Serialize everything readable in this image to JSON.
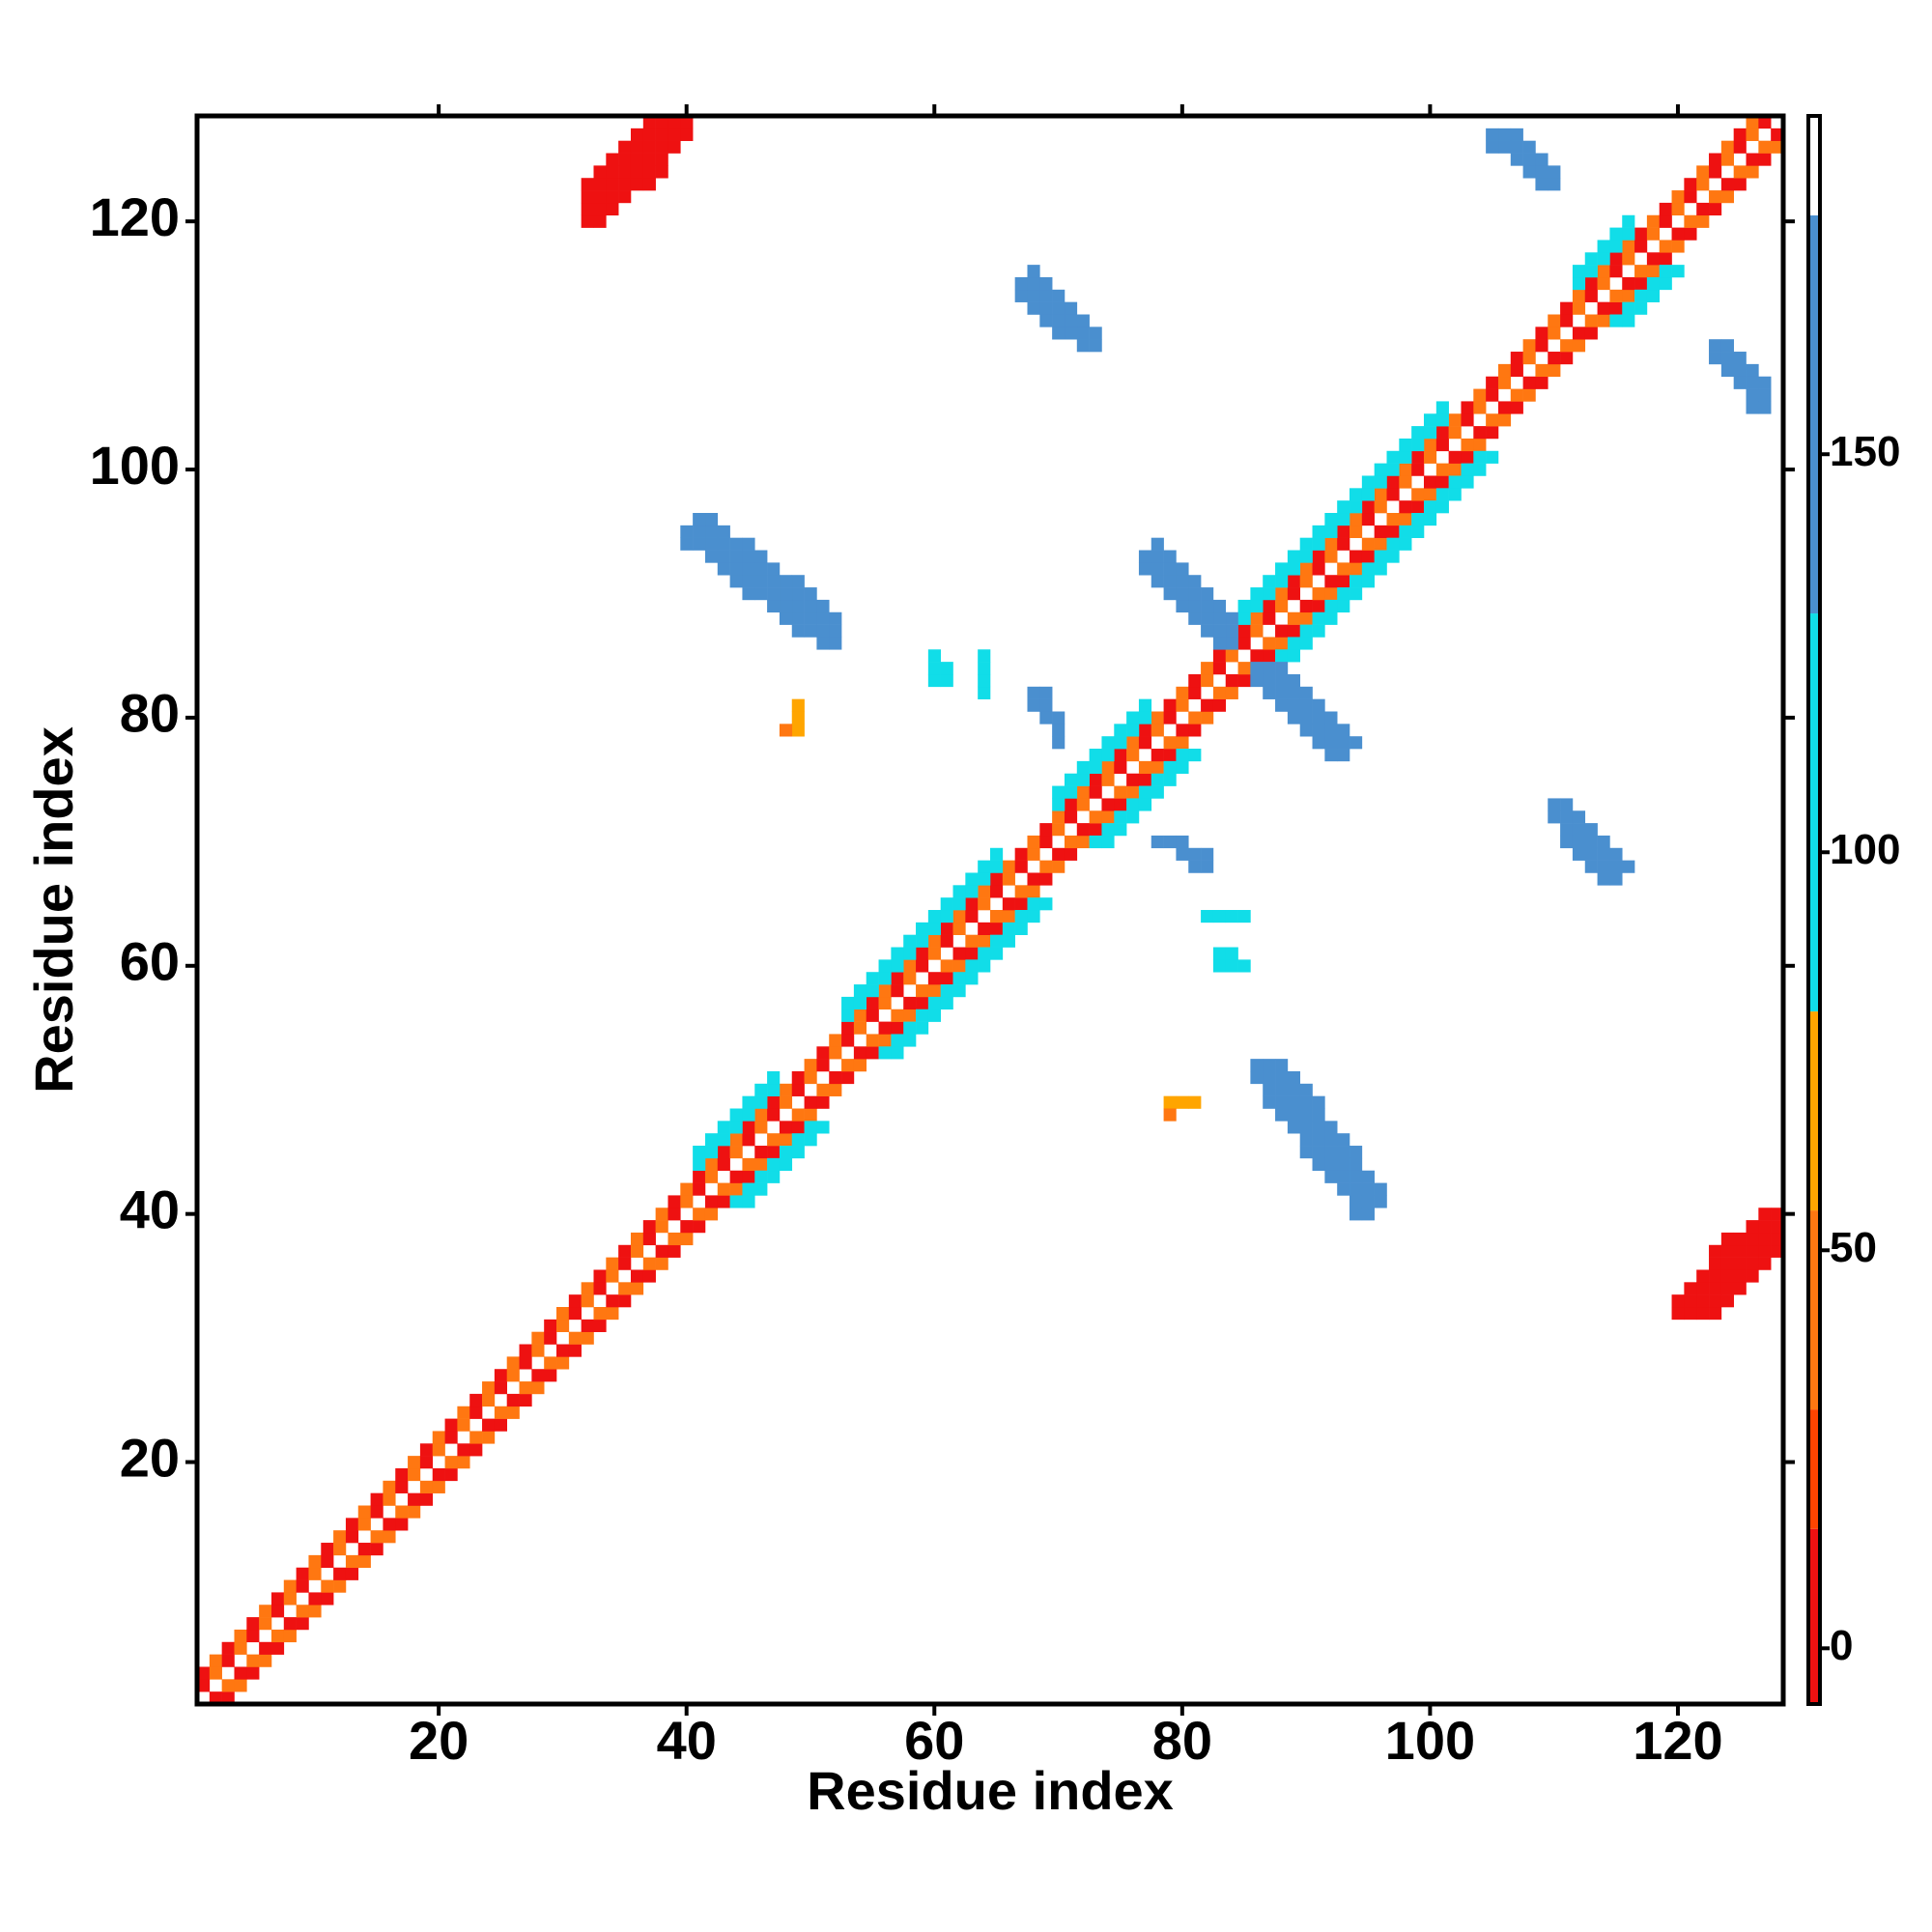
{
  "chart_data": {
    "type": "heatmap",
    "x_label": "Residue index",
    "y_label": "Residue index",
    "xlim": [
      0.5,
      128.5
    ],
    "ylim": [
      0.5,
      128.5
    ],
    "xticks": [
      20,
      40,
      60,
      80,
      100,
      120
    ],
    "yticks": [
      20,
      40,
      60,
      80,
      100,
      120
    ],
    "symmetric": true,
    "color_edges": [
      -7,
      15,
      30,
      55,
      80,
      130,
      180,
      192.5
    ],
    "colors": [
      "#ee1111",
      "#ff4400",
      "#ff7711",
      "#ffa500",
      "#11dde8",
      "#4a8fcf",
      "#ffffff"
    ],
    "colorbar_ticks": [
      0,
      50,
      100,
      150
    ],
    "cells": [
      [
        2,
        3,
        1,
        12
      ],
      [
        3,
        4,
        2,
        45
      ],
      [
        4,
        5,
        3,
        12
      ],
      [
        5,
        6,
        4,
        45
      ],
      [
        6,
        7,
        5,
        12
      ],
      [
        7,
        8,
        6,
        45
      ],
      [
        8,
        9,
        7,
        12
      ],
      [
        9,
        10,
        8,
        45
      ],
      [
        10,
        11,
        9,
        12
      ],
      [
        11,
        12,
        10,
        45
      ],
      [
        12,
        13,
        11,
        12
      ],
      [
        13,
        14,
        12,
        45
      ],
      [
        14,
        15,
        13,
        12
      ],
      [
        15,
        16,
        14,
        45
      ],
      [
        16,
        17,
        15,
        12
      ],
      [
        17,
        18,
        16,
        45
      ],
      [
        18,
        19,
        17,
        12
      ],
      [
        19,
        20,
        18,
        45
      ],
      [
        20,
        21,
        19,
        12
      ],
      [
        21,
        22,
        20,
        45
      ],
      [
        22,
        23,
        21,
        12
      ],
      [
        23,
        24,
        22,
        45
      ],
      [
        24,
        25,
        23,
        12
      ],
      [
        25,
        26,
        24,
        45
      ],
      [
        26,
        27,
        25,
        12
      ],
      [
        27,
        28,
        26,
        45
      ],
      [
        28,
        29,
        27,
        12
      ],
      [
        29,
        30,
        28,
        45
      ],
      [
        30,
        31,
        29,
        12
      ],
      [
        31,
        32,
        30,
        45
      ],
      [
        32,
        33,
        31,
        12
      ],
      [
        33,
        34,
        32,
        45
      ],
      [
        34,
        35,
        33,
        12
      ],
      [
        35,
        36,
        34,
        45
      ],
      [
        36,
        37,
        35,
        12
      ],
      [
        37,
        38,
        36,
        45
      ],
      [
        38,
        39,
        37,
        12
      ],
      [
        39,
        40,
        38,
        45
      ],
      [
        40,
        41,
        39,
        12
      ],
      [
        41,
        42,
        40,
        45
      ],
      [
        42,
        43,
        41,
        12
      ],
      [
        43,
        44,
        42,
        45
      ],
      [
        44,
        45,
        43,
        12
      ],
      [
        45,
        46,
        44,
        45
      ],
      [
        46,
        47,
        45,
        12
      ],
      [
        47,
        48,
        46,
        45
      ],
      [
        48,
        49,
        47,
        12
      ],
      [
        49,
        50,
        48,
        45
      ],
      [
        50,
        51,
        49,
        12
      ],
      [
        51,
        52,
        50,
        45
      ],
      [
        52,
        53,
        51,
        12
      ],
      [
        53,
        54,
        52,
        45
      ],
      [
        54,
        55,
        53,
        12
      ],
      [
        55,
        56,
        54,
        45
      ],
      [
        56,
        57,
        55,
        12
      ],
      [
        57,
        58,
        56,
        45
      ],
      [
        58,
        59,
        57,
        12
      ],
      [
        59,
        60,
        58,
        45
      ],
      [
        60,
        61,
        59,
        12
      ],
      [
        61,
        62,
        60,
        45
      ],
      [
        62,
        63,
        61,
        12
      ],
      [
        63,
        64,
        62,
        45
      ],
      [
        64,
        65,
        63,
        12
      ],
      [
        65,
        66,
        64,
        45
      ],
      [
        66,
        67,
        65,
        12
      ],
      [
        67,
        68,
        66,
        45
      ],
      [
        68,
        69,
        67,
        12
      ],
      [
        69,
        70,
        68,
        45
      ],
      [
        70,
        71,
        69,
        12
      ],
      [
        71,
        72,
        70,
        45
      ],
      [
        72,
        73,
        71,
        12
      ],
      [
        73,
        74,
        72,
        45
      ],
      [
        74,
        75,
        73,
        12
      ],
      [
        75,
        76,
        74,
        45
      ],
      [
        76,
        77,
        75,
        12
      ],
      [
        77,
        78,
        76,
        45
      ],
      [
        78,
        79,
        77,
        12
      ],
      [
        79,
        80,
        78,
        45
      ],
      [
        80,
        81,
        79,
        12
      ],
      [
        81,
        82,
        80,
        45
      ],
      [
        82,
        83,
        81,
        12
      ],
      [
        83,
        84,
        82,
        45
      ],
      [
        84,
        85,
        83,
        12
      ],
      [
        85,
        86,
        84,
        45
      ],
      [
        86,
        87,
        85,
        12
      ],
      [
        87,
        88,
        86,
        45
      ],
      [
        88,
        89,
        87,
        12
      ],
      [
        89,
        90,
        88,
        45
      ],
      [
        90,
        91,
        89,
        12
      ],
      [
        91,
        92,
        90,
        45
      ],
      [
        92,
        93,
        91,
        12
      ],
      [
        93,
        94,
        92,
        45
      ],
      [
        94,
        95,
        93,
        12
      ],
      [
        95,
        96,
        94,
        45
      ],
      [
        96,
        97,
        95,
        12
      ],
      [
        97,
        98,
        96,
        45
      ],
      [
        98,
        99,
        97,
        12
      ],
      [
        99,
        100,
        98,
        45
      ],
      [
        100,
        101,
        99,
        12
      ],
      [
        101,
        102,
        100,
        45
      ],
      [
        102,
        103,
        101,
        12
      ],
      [
        103,
        104,
        102,
        45
      ],
      [
        104,
        105,
        103,
        12
      ],
      [
        105,
        106,
        104,
        45
      ],
      [
        106,
        107,
        105,
        12
      ],
      [
        107,
        108,
        106,
        45
      ],
      [
        108,
        109,
        107,
        12
      ],
      [
        109,
        110,
        108,
        45
      ],
      [
        110,
        111,
        109,
        12
      ],
      [
        111,
        112,
        110,
        45
      ],
      [
        112,
        113,
        111,
        12
      ],
      [
        113,
        114,
        112,
        45
      ],
      [
        114,
        115,
        113,
        12
      ],
      [
        115,
        116,
        114,
        45
      ],
      [
        116,
        117,
        115,
        12
      ],
      [
        117,
        118,
        116,
        45
      ],
      [
        118,
        119,
        117,
        12
      ],
      [
        119,
        120,
        118,
        45
      ],
      [
        120,
        121,
        119,
        12
      ],
      [
        121,
        122,
        120,
        45
      ],
      [
        122,
        123,
        121,
        12
      ],
      [
        123,
        124,
        122,
        45
      ],
      [
        124,
        125,
        123,
        12
      ],
      [
        125,
        126,
        124,
        45
      ],
      [
        126,
        127,
        125,
        12
      ],
      [
        127,
        128,
        126,
        45
      ],
      [
        128,
        128,
        127,
        12
      ],
      [
        44,
        45,
        41,
        100
      ],
      [
        45,
        46,
        42,
        100
      ],
      [
        46,
        47,
        43,
        100
      ],
      [
        47,
        48,
        44,
        100
      ],
      [
        48,
        49,
        45,
        100
      ],
      [
        49,
        50,
        46,
        100
      ],
      [
        50,
        51,
        47,
        100
      ],
      [
        56,
        57,
        53,
        100
      ],
      [
        57,
        58,
        54,
        100
      ],
      [
        58,
        59,
        55,
        100
      ],
      [
        59,
        60,
        56,
        100
      ],
      [
        60,
        61,
        57,
        100
      ],
      [
        61,
        62,
        58,
        100
      ],
      [
        62,
        63,
        59,
        100
      ],
      [
        63,
        64,
        60,
        100
      ],
      [
        64,
        65,
        61,
        100
      ],
      [
        65,
        66,
        62,
        100
      ],
      [
        66,
        67,
        63,
        100
      ],
      [
        67,
        68,
        64,
        100
      ],
      [
        68,
        69,
        65,
        100
      ],
      [
        73,
        74,
        70,
        100
      ],
      [
        74,
        75,
        71,
        100
      ],
      [
        75,
        76,
        72,
        100
      ],
      [
        76,
        77,
        73,
        100
      ],
      [
        77,
        78,
        74,
        100
      ],
      [
        78,
        79,
        75,
        100
      ],
      [
        79,
        80,
        76,
        100
      ],
      [
        80,
        81,
        77,
        100
      ],
      [
        88,
        89,
        85,
        100
      ],
      [
        89,
        90,
        86,
        100
      ],
      [
        90,
        91,
        87,
        100
      ],
      [
        91,
        92,
        88,
        100
      ],
      [
        92,
        93,
        89,
        100
      ],
      [
        93,
        94,
        90,
        100
      ],
      [
        94,
        95,
        91,
        100
      ],
      [
        95,
        96,
        92,
        100
      ],
      [
        96,
        97,
        93,
        100
      ],
      [
        97,
        98,
        94,
        100
      ],
      [
        98,
        99,
        95,
        100
      ],
      [
        99,
        100,
        96,
        100
      ],
      [
        100,
        101,
        97,
        100
      ],
      [
        101,
        102,
        98,
        100
      ],
      [
        102,
        103,
        99,
        100
      ],
      [
        103,
        104,
        100,
        100
      ],
      [
        104,
        105,
        101,
        100
      ],
      [
        115,
        116,
        112,
        100
      ],
      [
        116,
        117,
        113,
        100
      ],
      [
        117,
        118,
        114,
        100
      ],
      [
        118,
        119,
        115,
        100
      ],
      [
        119,
        120,
        116,
        100
      ],
      [
        120,
        123,
        32,
        10
      ],
      [
        120,
        124,
        33,
        10
      ],
      [
        121,
        125,
        34,
        10
      ],
      [
        122,
        126,
        35,
        10
      ],
      [
        123,
        127,
        36,
        10
      ],
      [
        123,
        128,
        37,
        10
      ],
      [
        124,
        128,
        38,
        10
      ],
      [
        126,
        128,
        39,
        10
      ],
      [
        127,
        128,
        40,
        10
      ],
      [
        86,
        88,
        52,
        140
      ],
      [
        86,
        89,
        51,
        140
      ],
      [
        87,
        90,
        50,
        140
      ],
      [
        87,
        91,
        49,
        140
      ],
      [
        88,
        91,
        48,
        140
      ],
      [
        89,
        92,
        47,
        140
      ],
      [
        90,
        93,
        46,
        140
      ],
      [
        90,
        94,
        45,
        140
      ],
      [
        91,
        94,
        44,
        140
      ],
      [
        92,
        95,
        43,
        140
      ],
      [
        93,
        96,
        42,
        140
      ],
      [
        94,
        96,
        41,
        140
      ],
      [
        94,
        95,
        40,
        140
      ],
      [
        110,
        111,
        73,
        140
      ],
      [
        110,
        112,
        72,
        140
      ],
      [
        111,
        113,
        71,
        140
      ],
      [
        111,
        114,
        70,
        140
      ],
      [
        112,
        115,
        69,
        140
      ],
      [
        113,
        116,
        68,
        140
      ],
      [
        114,
        115,
        67,
        140
      ],
      [
        86,
        88,
        84,
        140
      ],
      [
        86,
        89,
        83,
        140
      ],
      [
        87,
        90,
        82,
        140
      ],
      [
        88,
        91,
        81,
        140
      ],
      [
        89,
        92,
        80,
        140
      ],
      [
        90,
        93,
        79,
        140
      ],
      [
        91,
        94,
        78,
        140
      ],
      [
        92,
        93,
        77,
        140
      ],
      [
        123,
        124,
        110,
        145
      ],
      [
        123,
        125,
        109,
        145
      ],
      [
        124,
        126,
        108,
        145
      ],
      [
        125,
        127,
        107,
        145
      ],
      [
        126,
        127,
        106,
        145
      ],
      [
        126,
        127,
        105,
        145
      ],
      [
        78,
        80,
        70,
        140
      ],
      [
        80,
        82,
        69,
        140
      ],
      [
        81,
        82,
        68,
        140
      ],
      [
        82,
        85,
        64,
        100
      ],
      [
        83,
        84,
        61,
        100
      ],
      [
        83,
        85,
        60,
        100
      ],
      [
        79,
        81,
        49,
        55
      ],
      [
        79,
        79,
        48,
        30
      ]
    ]
  }
}
